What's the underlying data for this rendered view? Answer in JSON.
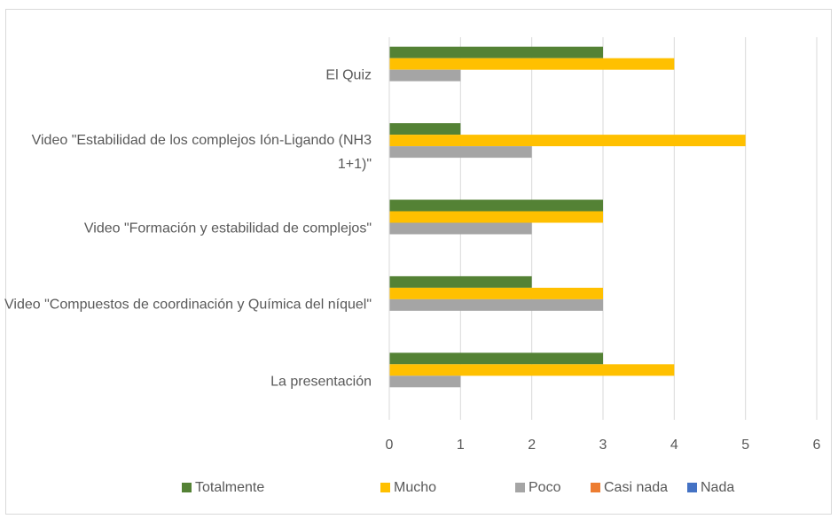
{
  "chart_data": {
    "type": "bar",
    "orientation": "horizontal",
    "categories": [
      "El Quiz",
      "Video \"Estabilidad de los complejos Ión-Ligando (NH3 1+1)\"",
      "Video \"Formación y estabilidad de complejos\"",
      "Video \"Compuestos de coordinación y Química del níquel\"",
      "La presentación"
    ],
    "series": [
      {
        "name": "Totalmente",
        "color": "#548235",
        "values": [
          3,
          1,
          3,
          2,
          3
        ]
      },
      {
        "name": "Mucho",
        "color": "#ffc000",
        "values": [
          4,
          5,
          3,
          3,
          4
        ]
      },
      {
        "name": "Poco",
        "color": "#a5a5a5",
        "values": [
          1,
          2,
          2,
          3,
          1
        ]
      },
      {
        "name": "Casi nada",
        "color": "#ed7d31",
        "values": [
          0,
          0,
          0,
          0,
          0
        ]
      },
      {
        "name": "Nada",
        "color": "#4472c4",
        "values": [
          0,
          0,
          0,
          0,
          0
        ]
      }
    ],
    "xlim": [
      0,
      6
    ],
    "xticks": [
      0,
      1,
      2,
      3,
      4,
      5,
      6
    ],
    "grid": true,
    "legend": "bottom"
  }
}
